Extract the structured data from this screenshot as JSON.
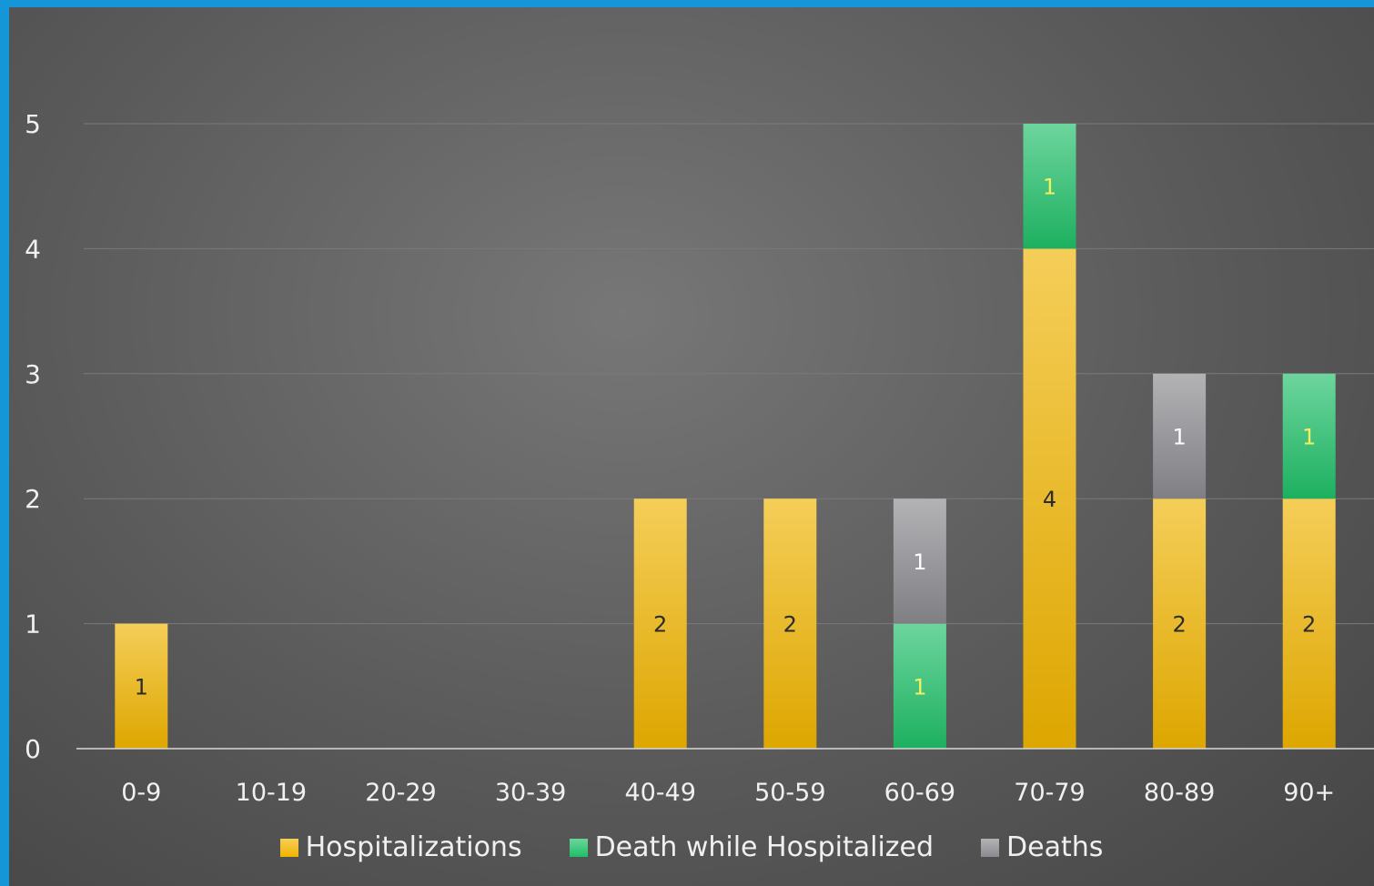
{
  "chart_data": {
    "type": "bar",
    "stacked": true,
    "title": "",
    "xlabel": "",
    "ylabel": "",
    "ylim": [
      0,
      5
    ],
    "yticks": [
      0,
      1,
      2,
      3,
      4,
      5
    ],
    "grid": true,
    "legend_position": "bottom",
    "categories": [
      "0-9",
      "10-19",
      "20-29",
      "30-39",
      "40-49",
      "50-59",
      "60-69",
      "70-79",
      "80-89",
      "90+"
    ],
    "series": [
      {
        "name": "Hospitalizations",
        "color": "#f0b400",
        "values": [
          1,
          0,
          0,
          0,
          2,
          2,
          0,
          4,
          2,
          2
        ]
      },
      {
        "name": "Death while Hospitalized",
        "color": "#1fbf68",
        "values": [
          0,
          0,
          0,
          0,
          0,
          0,
          1,
          1,
          0,
          1
        ]
      },
      {
        "name": "Deaths",
        "color": "#8a8a8f",
        "values": [
          0,
          0,
          0,
          0,
          0,
          0,
          1,
          0,
          1,
          0
        ]
      }
    ],
    "label_colors": {
      "Hospitalizations": "#2b2b2b",
      "Death while Hospitalized": "#f2f060",
      "Deaths": "#ffffff"
    }
  }
}
